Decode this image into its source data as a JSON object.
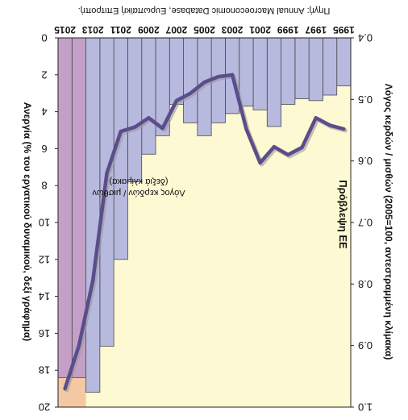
{
  "chart_data": {
    "type": "bar",
    "orientation": "mirrored (image rotated 180°; bars hang from the top edge)",
    "source": "Πηγή: Annual Macroeconomic Database, Ευρωπαϊκή Επιτροπή.",
    "year_labels": [
      "1995",
      "1997",
      "1999",
      "2001",
      "2003",
      "2005",
      "2007",
      "2009",
      "2011",
      "2013",
      "2015"
    ],
    "x": [
      "1995",
      "1996",
      "1997",
      "1998",
      "1999",
      "2000",
      "2001",
      "2002",
      "2003",
      "2004",
      "2005",
      "2006",
      "2007",
      "2008",
      "2009",
      "2010",
      "2011",
      "2012",
      "2013",
      "2014",
      "2015"
    ],
    "left_axis": {
      "label": "Ανεργία (% του εργατικού δυναμικού, δεξί γράφημα)",
      "ticks": [
        "0",
        "2",
        "4",
        "6",
        "8",
        "10",
        "12",
        "14",
        "16",
        "18",
        "20"
      ],
      "range": [
        0,
        20
      ]
    },
    "right_axis": {
      "label": "Λόγος κερδών / μισθών (2005=100, αντεστραμμένη κλίμακα)",
      "ticks": [
        "0.4",
        "0.5",
        "0.6",
        "0.7",
        "0.8",
        "0.9",
        "1.0"
      ],
      "range": [
        0.4,
        1.0
      ],
      "inverted": true
    },
    "series": [
      {
        "axis": "left",
        "kind": "bar",
        "values": [
          2.6,
          3.1,
          3.4,
          3.3,
          3.6,
          4.8,
          3.9,
          3.7,
          4.1,
          4.6,
          5.3,
          4.6,
          3.6,
          5.3,
          6.3,
          7.8,
          12.0,
          16.7,
          19.2,
          18.4,
          18.4
        ]
      },
      {
        "axis": "right",
        "kind": "line",
        "name": "Λόγος κερδών / μισθών (δεξιά κλίμακα)",
        "values": [
          0.548,
          0.542,
          0.53,
          0.578,
          0.59,
          0.577,
          0.603,
          0.548,
          0.46,
          0.463,
          0.472,
          0.49,
          0.502,
          0.547,
          0.53,
          0.545,
          0.552,
          0.62,
          0.794,
          0.9,
          0.97
        ]
      }
    ],
    "annotations": {
      "line_label_1": "Λόγος κερδών / μισθών",
      "line_label_2": "(δεξιά κλίμακα)",
      "forecast": "Πρόβλεψη ΕΕ"
    },
    "forecast_from": "2014",
    "colors": {
      "plot_bg": "#fdf9d2",
      "bar_fill": "#b7b9de",
      "bar_stroke": "#4a4a4a",
      "line": "#5b4d8c",
      "forecast_shade": "#f5c8a4",
      "forecast_bar_fill": "#c4a0c8"
    },
    "grid": false,
    "legend": "none"
  }
}
